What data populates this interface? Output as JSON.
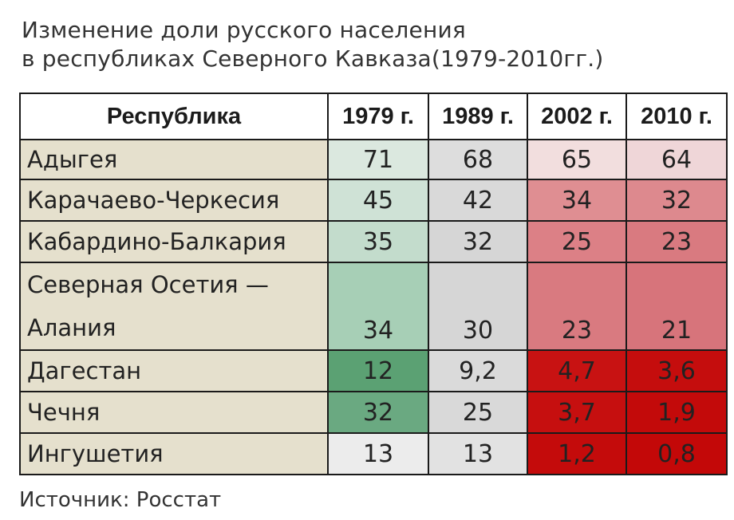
{
  "title": {
    "line1": "Изменение доли русского населения",
    "line2": "в республиках Северного Кавказа(1979-2010гг.)"
  },
  "chart_data": {
    "type": "table",
    "columns": [
      "Республика",
      "1979 г.",
      "1989 г.",
      "2002 г.",
      "2010 г."
    ],
    "rows": [
      {
        "name": "Адыгея",
        "values": [
          "71",
          "68",
          "65",
          "64"
        ],
        "colors": [
          "#dbe8df",
          "#dddddd",
          "#f2dede",
          "#efd6d8"
        ]
      },
      {
        "name": "Карачаево-Черкесия",
        "values": [
          "45",
          "42",
          "34",
          "32"
        ],
        "colors": [
          "#cfe2d6",
          "#d9d9d9",
          "#df8e92",
          "#dd898e"
        ]
      },
      {
        "name": "Кабардино-Балкария",
        "values": [
          "35",
          "32",
          "25",
          "23"
        ],
        "colors": [
          "#c3dccc",
          "#d6d6d6",
          "#dc8086",
          "#d97a80"
        ]
      },
      {
        "name": "Северная Осетия — Алания",
        "values": [
          "34",
          "30",
          "23",
          "21"
        ],
        "colors": [
          "#a7cfb6",
          "#d6d6d6",
          "#d97a80",
          "#d7747b"
        ]
      },
      {
        "name": "Дагестан",
        "values": [
          "12",
          "9,2",
          "4,7",
          "3,6"
        ],
        "colors": [
          "#5ba173",
          "#dadada",
          "#c81212",
          "#c50d0d"
        ]
      },
      {
        "name": "Чечня",
        "values": [
          "32",
          "25",
          "3,7",
          "1,9"
        ],
        "colors": [
          "#6aa981",
          "#d9d9d9",
          "#c60f0f",
          "#c30a0a"
        ]
      },
      {
        "name": "Ингушетия",
        "values": [
          "13",
          "13",
          "1,2",
          "0,8"
        ],
        "colors": [
          "#ececec",
          "#e2e2e2",
          "#c40b0b",
          "#c30808"
        ]
      }
    ]
  },
  "footer": "Источник: Росстат"
}
